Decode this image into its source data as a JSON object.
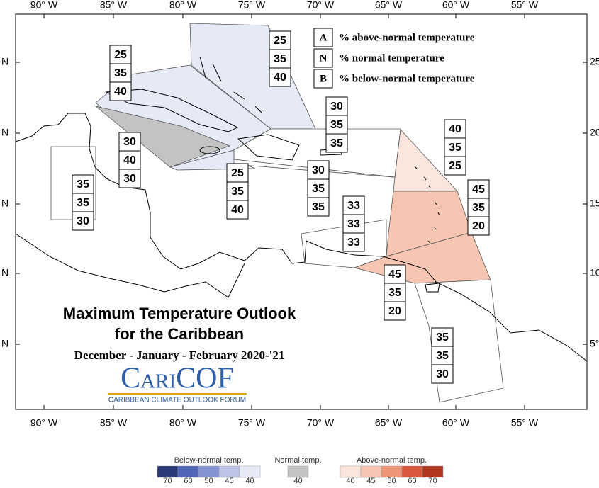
{
  "axes": {
    "lon_labels": [
      "90° W",
      "85° W",
      "80° W",
      "75° W",
      "70° W",
      "65° W",
      "60° W",
      "55° W"
    ],
    "lat_labels_left": [
      "N",
      "N",
      "N",
      "N",
      "N"
    ],
    "lat_labels_right": [
      "25",
      "20",
      "15",
      "10",
      "5°"
    ]
  },
  "title": {
    "line1": "Maximum Temperature Outlook",
    "line2": "for the Caribbean",
    "period": "December - January - February 2020-'21"
  },
  "logo": {
    "name": "CariCOF",
    "tagline": "CARIBBEAN CLIMATE OUTLOOK FORUM"
  },
  "key": [
    {
      "letter": "A",
      "text": "% above-normal temperature"
    },
    {
      "letter": "N",
      "text": "% normal temperature"
    },
    {
      "letter": "B",
      "text": "% below-normal temperature"
    }
  ],
  "regions": [
    {
      "values": [
        25,
        35,
        40
      ],
      "color": "#e6eaf7"
    },
    {
      "values": [
        25,
        35,
        40
      ],
      "color": "#e6eaf7"
    },
    {
      "values": [
        30,
        40,
        30
      ],
      "color": "#c3c3c3"
    },
    {
      "values": [
        30,
        35,
        35
      ],
      "color": "#ffffff"
    },
    {
      "values": [
        25,
        35,
        40
      ],
      "color": "#e6eaf7"
    },
    {
      "values": [
        30,
        35,
        35
      ],
      "color": "#ffffff"
    },
    {
      "values": [
        35,
        35,
        30
      ],
      "color": "#ffffff"
    },
    {
      "values": [
        40,
        35,
        25
      ],
      "color": "#fbe6dd"
    },
    {
      "values": [
        45,
        35,
        20
      ],
      "color": "#f6c6b3"
    },
    {
      "values": [
        33,
        33,
        33
      ],
      "color": "#ffffff"
    },
    {
      "values": [
        45,
        35,
        20
      ],
      "color": "#f6c6b3"
    },
    {
      "values": [
        35,
        35,
        30
      ],
      "color": "#ffffff"
    }
  ],
  "legend": [
    {
      "title": "Below-normal temp.",
      "swatches": [
        {
          "label": "70",
          "color": "#2a3a78"
        },
        {
          "label": "60",
          "color": "#5266b8"
        },
        {
          "label": "50",
          "color": "#8592d0"
        },
        {
          "label": "45",
          "color": "#bcc3e6"
        },
        {
          "label": "40",
          "color": "#e6eaf7"
        }
      ]
    },
    {
      "title": "Normal temp.",
      "swatches": [
        {
          "label": "40",
          "color": "#c3c3c3"
        }
      ]
    },
    {
      "title": "Above-normal temp.",
      "swatches": [
        {
          "label": "40",
          "color": "#fbe6dd"
        },
        {
          "label": "45",
          "color": "#f6c6b3"
        },
        {
          "label": "50",
          "color": "#ee9478"
        },
        {
          "label": "60",
          "color": "#d9583e"
        },
        {
          "label": "70",
          "color": "#b1361f"
        }
      ]
    }
  ]
}
